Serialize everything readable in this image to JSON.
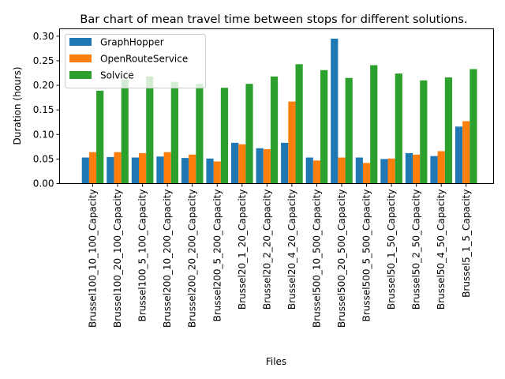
{
  "chart_data": {
    "type": "bar",
    "title": "Bar chart of mean travel time between stops for different solutions.",
    "xlabel": "Files",
    "ylabel": "Duration (hours)",
    "ylim": [
      0,
      0.315
    ],
    "yticks": [
      "0.00",
      "0.05",
      "0.10",
      "0.15",
      "0.20",
      "0.25",
      "0.30"
    ],
    "grid": false,
    "legend_position": "top-left",
    "categories": [
      "Brussel100_10_100_Capacity",
      "Brussel100_20_100_Capacity",
      "Brussel100_5_100_Capacity",
      "Brussel200_10_200_Capacity",
      "Brussel200_20_200_Capacity",
      "Brussel200_5_200_Capacity",
      "Brussel20_1_20_Capacity",
      "Brussel20_2_20_Capacity",
      "Brussel20_4_20_Capacity",
      "Brussel500_10_500_Capacity",
      "Brussel500_20_500_Capacity",
      "Brussel500_5_500_Capacity",
      "Brussel50_1_50_Capacity",
      "Brussel50_2_50_Capacity",
      "Brussel50_4_50_Capacity",
      "Brussel5_1_5_Capacity"
    ],
    "series": [
      {
        "name": "GraphHopper",
        "color": "#1f77b4",
        "values": [
          0.053,
          0.054,
          0.053,
          0.055,
          0.052,
          0.051,
          0.083,
          0.072,
          0.083,
          0.053,
          0.295,
          0.053,
          0.05,
          0.062,
          0.056,
          0.116
        ]
      },
      {
        "name": "OpenRouteService",
        "color": "#ff7f0e",
        "values": [
          0.064,
          0.064,
          0.062,
          0.064,
          0.059,
          0.045,
          0.08,
          0.07,
          0.167,
          0.047,
          0.053,
          0.042,
          0.051,
          0.059,
          0.066,
          0.127
        ]
      },
      {
        "name": "Solvice",
        "color": "#2ca02c",
        "values": [
          0.189,
          0.212,
          0.218,
          0.207,
          0.203,
          0.195,
          0.203,
          0.218,
          0.243,
          0.231,
          0.215,
          0.241,
          0.224,
          0.21,
          0.216,
          0.233
        ]
      }
    ]
  }
}
